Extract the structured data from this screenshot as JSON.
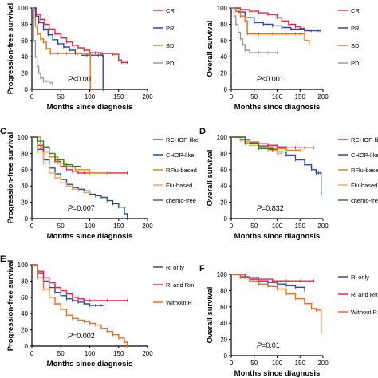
{
  "chart_data": [
    {
      "type": "line",
      "panel_letter": "",
      "ylabel": "Progression-free survival",
      "xlabel": "Months since diagnosis",
      "xlim": [
        0,
        200
      ],
      "ylim": [
        0,
        100
      ],
      "xticks": [
        0,
        50,
        100,
        150,
        200
      ],
      "yticks": [
        0,
        20,
        40,
        60,
        80,
        100
      ],
      "pvalue": "<0.001",
      "legend_position": "right",
      "series": [
        {
          "name": "CR",
          "color": "#e8273a",
          "x": [
            0,
            8,
            15,
            22,
            30,
            40,
            50,
            60,
            70,
            80,
            90,
            100,
            110,
            120,
            140,
            150,
            155,
            165
          ],
          "y": [
            100,
            92,
            86,
            80,
            74,
            68,
            63,
            58,
            54,
            51,
            48,
            45,
            45,
            44,
            43,
            36,
            33,
            33
          ]
        },
        {
          "name": "PR",
          "color": "#2e4a9c",
          "x": [
            0,
            6,
            12,
            20,
            28,
            36,
            45,
            55,
            65,
            75,
            85,
            95,
            105,
            115,
            122,
            123
          ],
          "y": [
            100,
            90,
            82,
            74,
            67,
            61,
            56,
            52,
            48,
            44,
            42,
            42,
            42,
            42,
            42,
            0
          ]
        },
        {
          "name": "SD",
          "color": "#f26a1b",
          "x": [
            0,
            3,
            6,
            10,
            15,
            20,
            25,
            32,
            45,
            60,
            80,
            100,
            101
          ],
          "y": [
            100,
            88,
            78,
            68,
            62,
            58,
            50,
            44,
            44,
            44,
            44,
            44,
            0
          ]
        },
        {
          "name": "PD",
          "color": "#9a9a9a",
          "x": [
            0,
            3,
            6,
            9,
            12,
            15,
            20,
            25,
            30,
            35
          ],
          "y": [
            100,
            60,
            40,
            28,
            20,
            14,
            10,
            10,
            8,
            8
          ]
        }
      ]
    },
    {
      "type": "line",
      "panel_letter": "",
      "ylabel": "Overall survival",
      "xlabel": "Months since diagnosis",
      "xlim": [
        0,
        200
      ],
      "ylim": [
        0,
        100
      ],
      "xticks": [
        0,
        50,
        100,
        150,
        200
      ],
      "yticks": [
        0,
        20,
        40,
        60,
        80,
        100
      ],
      "pvalue": "<0.001",
      "legend_position": "right",
      "series": [
        {
          "name": "CR",
          "color": "#e8273a",
          "x": [
            0,
            20,
            40,
            60,
            80,
            100,
            110,
            125,
            140,
            150,
            160,
            170,
            175
          ],
          "y": [
            100,
            98,
            96,
            94,
            92,
            88,
            84,
            80,
            77,
            75,
            73,
            72,
            72
          ]
        },
        {
          "name": "PR",
          "color": "#2e4a9c",
          "x": [
            0,
            15,
            30,
            50,
            70,
            90,
            110,
            130,
            160,
            190,
            195
          ],
          "y": [
            100,
            95,
            88,
            82,
            80,
            78,
            76,
            74,
            72,
            72,
            72
          ]
        },
        {
          "name": "SD",
          "color": "#f26a1b",
          "x": [
            0,
            10,
            20,
            30,
            35,
            60,
            90,
            120,
            140,
            150,
            160,
            170
          ],
          "y": [
            100,
            96,
            90,
            84,
            68,
            68,
            68,
            68,
            68,
            68,
            60,
            55
          ]
        },
        {
          "name": "PD",
          "color": "#9a9a9a",
          "x": [
            0,
            6,
            10,
            15,
            20,
            25,
            30,
            40,
            60,
            80,
            100
          ],
          "y": [
            100,
            90,
            80,
            70,
            62,
            55,
            48,
            45,
            45,
            45,
            45
          ]
        }
      ]
    },
    {
      "type": "line",
      "panel_letter": "C",
      "ylabel": "Progression-free survival",
      "xlabel": "Months since diagnosis",
      "xlim": [
        0,
        200
      ],
      "ylim": [
        0,
        100
      ],
      "xticks": [
        0,
        50,
        100,
        150,
        200
      ],
      "yticks": [
        0,
        20,
        40,
        60,
        80,
        100
      ],
      "pvalue": "=0.007",
      "legend_position": "right",
      "series": [
        {
          "name": "RCHOP-like",
          "color": "#e8273a",
          "x": [
            0,
            10,
            20,
            30,
            40,
            50,
            60,
            70,
            80,
            90,
            100,
            130,
            165
          ],
          "y": [
            100,
            90,
            82,
            76,
            70,
            64,
            60,
            58,
            56,
            56,
            56,
            56,
            56
          ]
        },
        {
          "name": "CHOP-like",
          "color": "#2e4a9c",
          "x": [
            0,
            10,
            20,
            30,
            40,
            50,
            60,
            70,
            80,
            90,
            100,
            110,
            120,
            130,
            140,
            150,
            160,
            165
          ],
          "y": [
            100,
            85,
            72,
            62,
            55,
            48,
            42,
            38,
            36,
            34,
            30,
            28,
            26,
            22,
            18,
            14,
            6,
            0
          ]
        },
        {
          "name": "RFlu-based",
          "color": "#d98c1a",
          "x": [
            0,
            15,
            30,
            45,
            60,
            75,
            100,
            130
          ],
          "y": [
            100,
            88,
            76,
            68,
            64,
            60,
            56,
            56
          ]
        },
        {
          "name": "Flu-based",
          "color": "#f2a65a",
          "x": [
            0,
            10,
            20,
            30,
            40,
            50,
            60,
            70,
            80,
            90,
            100
          ],
          "y": [
            100,
            82,
            68,
            56,
            50,
            44,
            40,
            36,
            34,
            32,
            32
          ]
        },
        {
          "name": "chemo-free",
          "color": "#2e7d32",
          "x": [
            0,
            10,
            20,
            30,
            40,
            55,
            70,
            85
          ],
          "y": [
            100,
            95,
            88,
            80,
            72,
            66,
            64,
            64
          ]
        }
      ]
    },
    {
      "type": "line",
      "panel_letter": "D",
      "ylabel": "Overall survival",
      "xlabel": "Months since diagnosis",
      "xlim": [
        0,
        200
      ],
      "ylim": [
        0,
        100
      ],
      "xticks": [
        0,
        50,
        100,
        150,
        200
      ],
      "yticks": [
        0,
        20,
        40,
        60,
        80,
        100
      ],
      "pvalue": "=0.832",
      "legend_position": "right",
      "series": [
        {
          "name": "RCHOP-like",
          "color": "#e8273a",
          "x": [
            0,
            20,
            40,
            60,
            80,
            100,
            120,
            140,
            160,
            180
          ],
          "y": [
            100,
            97,
            94,
            92,
            90,
            88,
            87,
            87,
            87,
            87
          ]
        },
        {
          "name": "CHOP-like",
          "color": "#2e4a9c",
          "x": [
            0,
            20,
            40,
            60,
            80,
            100,
            120,
            140,
            160,
            175,
            185,
            190,
            195,
            196
          ],
          "y": [
            100,
            97,
            93,
            89,
            85,
            82,
            78,
            72,
            66,
            60,
            56,
            56,
            56,
            28
          ]
        },
        {
          "name": "RFlu-based",
          "color": "#d98c1a",
          "x": [
            0,
            30,
            60,
            90,
            120,
            150
          ],
          "y": [
            100,
            94,
            88,
            86,
            84,
            84
          ]
        },
        {
          "name": "Flu-based",
          "color": "#f2a65a",
          "x": [
            0,
            20,
            40,
            60,
            80,
            100,
            110
          ],
          "y": [
            100,
            96,
            90,
            86,
            84,
            80,
            80
          ]
        },
        {
          "name": "chemo-free",
          "color": "#2e7d32",
          "x": [
            0,
            30,
            60,
            90
          ],
          "y": [
            100,
            92,
            86,
            84
          ]
        }
      ]
    },
    {
      "type": "line",
      "panel_letter": "E",
      "ylabel": "Progression-free survival",
      "xlabel": "Months since diagnosis",
      "xlim": [
        0,
        200
      ],
      "ylim": [
        0,
        100
      ],
      "xticks": [
        0,
        50,
        100,
        150,
        200
      ],
      "yticks": [
        0,
        20,
        40,
        60,
        80,
        100
      ],
      "pvalue": "=0.002",
      "legend_position": "right",
      "series": [
        {
          "name": "Ri only",
          "color": "#2e4a9c",
          "x": [
            0,
            10,
            20,
            30,
            40,
            50,
            60,
            70,
            80,
            90,
            100,
            110,
            120,
            125
          ],
          "y": [
            100,
            90,
            80,
            72,
            66,
            62,
            58,
            56,
            54,
            52,
            50,
            50,
            50,
            50
          ]
        },
        {
          "name": "Ri and Rm",
          "color": "#e8273a",
          "x": [
            0,
            10,
            20,
            30,
            40,
            50,
            60,
            70,
            80,
            90,
            100,
            130,
            165
          ],
          "y": [
            100,
            92,
            84,
            78,
            72,
            68,
            64,
            60,
            58,
            56,
            56,
            56,
            56
          ]
        },
        {
          "name": "Without R",
          "color": "#f26a1b",
          "x": [
            0,
            10,
            20,
            30,
            40,
            50,
            60,
            70,
            80,
            90,
            100,
            110,
            120,
            130,
            140,
            150,
            160,
            165
          ],
          "y": [
            100,
            84,
            70,
            60,
            52,
            45,
            38,
            34,
            32,
            30,
            28,
            26,
            22,
            18,
            14,
            10,
            5,
            0
          ]
        }
      ]
    },
    {
      "type": "line",
      "panel_letter": "F",
      "ylabel": "Overall survival",
      "xlabel": "Months since diagnosis",
      "xlim": [
        0,
        200
      ],
      "ylim": [
        0,
        100
      ],
      "xticks": [
        0,
        50,
        100,
        150,
        200
      ],
      "yticks": [
        0,
        20,
        40,
        60,
        80,
        100
      ],
      "pvalue": "=0.01",
      "legend_position": "right",
      "series": [
        {
          "name": "Ri only",
          "color": "#2e4a9c",
          "x": [
            0,
            20,
            40,
            60,
            80,
            100,
            120,
            140,
            160
          ],
          "y": [
            100,
            97,
            94,
            92,
            90,
            88,
            86,
            84,
            80
          ]
        },
        {
          "name": "Ri and Rm",
          "color": "#e8273a",
          "x": [
            0,
            30,
            60,
            90,
            120,
            150,
            180
          ],
          "y": [
            100,
            96,
            94,
            92,
            92,
            92,
            92
          ]
        },
        {
          "name": "Without R",
          "color": "#f26a1b",
          "x": [
            0,
            20,
            40,
            60,
            80,
            100,
            120,
            140,
            160,
            175,
            185,
            195,
            196
          ],
          "y": [
            100,
            96,
            92,
            88,
            85,
            82,
            76,
            70,
            64,
            58,
            56,
            56,
            28
          ]
        }
      ]
    }
  ]
}
